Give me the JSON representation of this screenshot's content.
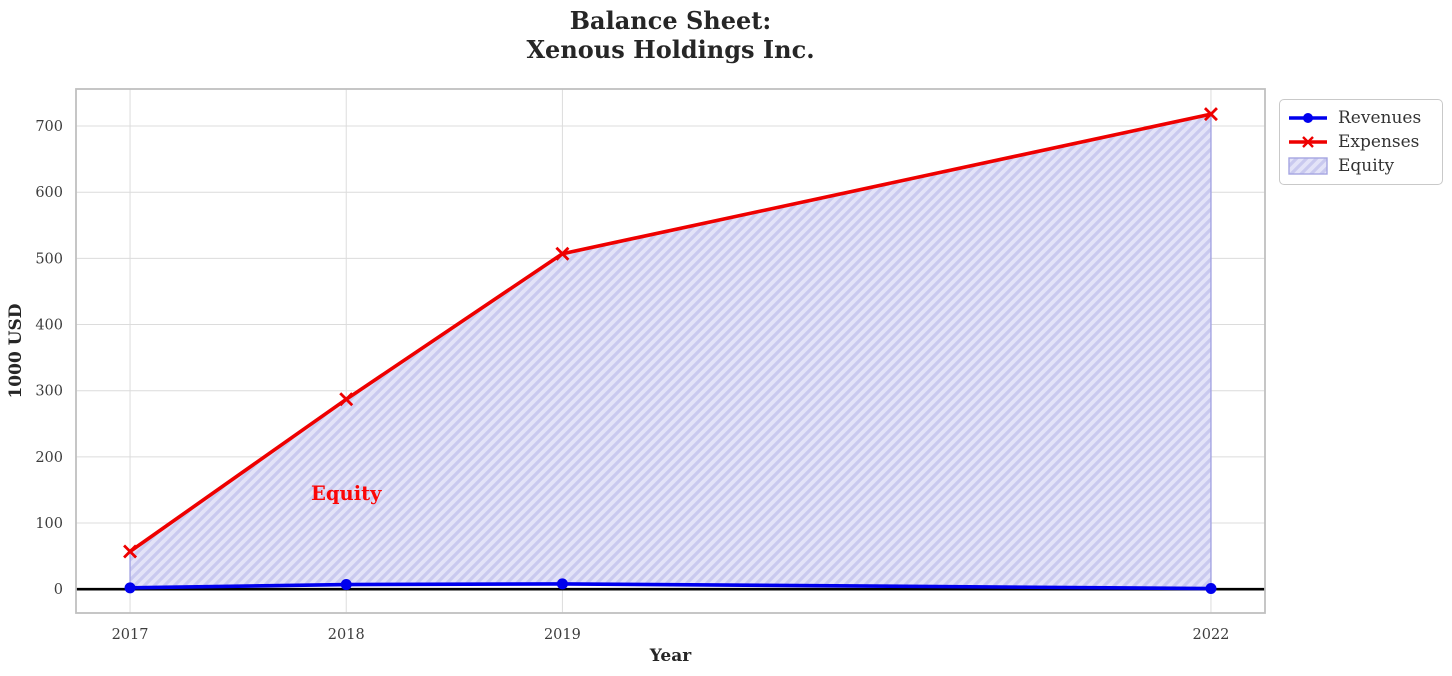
{
  "chart_data": {
    "type": "line",
    "title": "Balance Sheet:\nXenous Holdings Inc.",
    "xlabel": "Year",
    "ylabel": "1000 USD",
    "x": [
      2017,
      2018,
      2019,
      2022
    ],
    "series": [
      {
        "name": "Revenues",
        "values": [
          2,
          7,
          8,
          1
        ],
        "color": "#0000ee",
        "marker": "circle"
      },
      {
        "name": "Expenses",
        "values": [
          57,
          287,
          507,
          718
        ],
        "color": "#ee0000",
        "marker": "x"
      }
    ],
    "fill_between": {
      "name": "Equity",
      "lower": "Revenues",
      "upper": "Expenses",
      "face_color": "#e3e3f8",
      "hatch_color": "#c9c9ef",
      "edge_color": "#a5a5e2",
      "hatch_style": "diagonal"
    },
    "annotation": {
      "text": "Equity",
      "x": 2018,
      "y": 145,
      "color": "#fb0606"
    },
    "xticks": [
      2017,
      2018,
      2019,
      2022
    ],
    "yticks": [
      0,
      100,
      200,
      300,
      400,
      500,
      600,
      700
    ],
    "xlim": [
      2016.75,
      2022.25
    ],
    "ylim": [
      -36,
      756
    ],
    "grid": true,
    "grid_color": "#dcdcdc",
    "spine_color": "#c0c0c0",
    "tick_label_color": "#3d3d3d",
    "zero_line": true,
    "zero_line_color": "#000000",
    "legend_position": "outside-upper-right"
  }
}
